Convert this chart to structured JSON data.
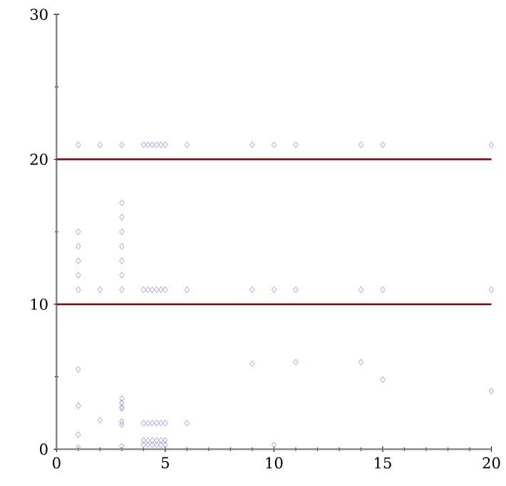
{
  "chart_data": {
    "type": "scatter",
    "x": [
      1,
      2,
      3,
      4,
      4.2,
      4.4,
      4.6,
      4.8,
      5,
      6,
      9,
      10,
      11,
      14,
      15,
      20,
      1,
      2,
      3,
      4,
      4.2,
      4.4,
      4.6,
      4.8,
      5,
      6,
      9,
      10,
      11,
      14,
      15,
      20,
      1,
      1,
      1,
      1,
      3,
      3,
      3,
      3,
      3,
      3,
      1,
      1,
      1,
      1,
      2,
      3,
      3,
      3,
      3,
      3,
      3,
      3,
      4,
      4.2,
      4.4,
      4.6,
      4.8,
      5,
      4,
      4.2,
      4.4,
      4.6,
      4.8,
      5,
      4,
      4.2,
      4.4,
      4.6,
      4.8,
      5,
      6,
      9,
      10,
      11,
      14,
      15,
      20
    ],
    "values": [
      21,
      21,
      21,
      21,
      21,
      21,
      21,
      21,
      21,
      21,
      21,
      21,
      21,
      21,
      21,
      21,
      11,
      11,
      11,
      11,
      11,
      11,
      11,
      11,
      11,
      11,
      11,
      11,
      11,
      11,
      11,
      11,
      15,
      14,
      13,
      12,
      17,
      16,
      15,
      14,
      13,
      12,
      5.5,
      3,
      1,
      0.1,
      2,
      3.5,
      3.2,
      2.9,
      2.8,
      1.9,
      1.7,
      0.2,
      1.8,
      1.8,
      1.8,
      1.8,
      1.8,
      1.8,
      0.6,
      0.6,
      0.6,
      0.6,
      0.6,
      0.6,
      0.3,
      0.3,
      0.3,
      0.3,
      0.3,
      0.3,
      1.8,
      5.9,
      0.3,
      6,
      6,
      4.8,
      4
    ],
    "color": "#9999ff",
    "marker": "diamond",
    "xlim": [
      0,
      20
    ],
    "ylim": [
      0,
      30
    ],
    "xticks": [
      0,
      5,
      10,
      15,
      20
    ],
    "yticks": [
      0,
      10,
      20,
      30
    ],
    "ref_lines": [
      {
        "axis": "y",
        "value": 10,
        "color": "#800000"
      },
      {
        "axis": "y",
        "value": 20,
        "color": "#800000"
      }
    ],
    "grid": false
  }
}
